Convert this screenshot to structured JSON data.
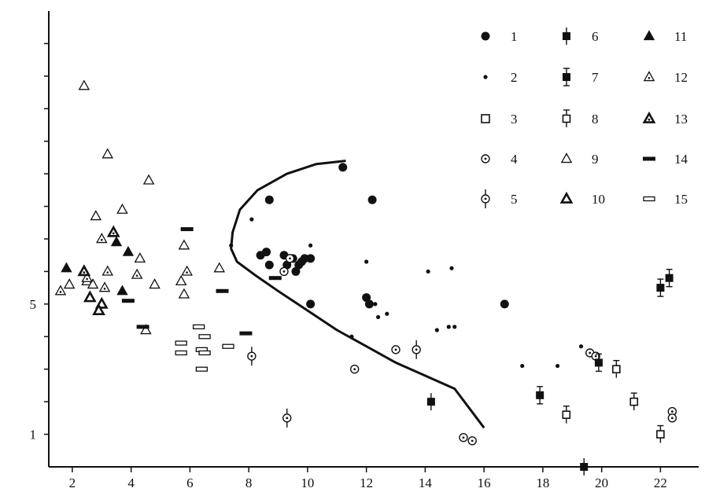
{
  "chart_data": {
    "type": "scatter",
    "xlim": [
      1.2,
      23.3
    ],
    "ylim": [
      0.0,
      14.0
    ],
    "x_ticks": [
      2,
      4,
      6,
      8,
      10,
      12,
      14,
      16,
      18,
      20,
      22
    ],
    "y_ticks_labeled": [
      1,
      5
    ],
    "y_ticks_minor": [
      2,
      3,
      4,
      6,
      7,
      8,
      9,
      10,
      11,
      12,
      13
    ],
    "grid": false,
    "legend_placement": "top-right",
    "legend": [
      {
        "label": "1",
        "marker": "filled-circle-large"
      },
      {
        "label": "2",
        "marker": "filled-dot"
      },
      {
        "label": "3",
        "marker": "open-square"
      },
      {
        "label": "4",
        "marker": "circle-dot"
      },
      {
        "label": "5",
        "marker": "circle-dot-errorbar"
      },
      {
        "label": "6",
        "marker": "filled-square-errorbar"
      },
      {
        "label": "7",
        "marker": "filled-square-capped-errorbar"
      },
      {
        "label": "8",
        "marker": "open-square-capped-errorbar"
      },
      {
        "label": "9",
        "marker": "open-triangle"
      },
      {
        "label": "10",
        "marker": "open-triangle-thick"
      },
      {
        "label": "11",
        "marker": "filled-triangle"
      },
      {
        "label": "12",
        "marker": "triangle-dotted"
      },
      {
        "label": "13",
        "marker": "triangle-dotted-thick"
      },
      {
        "label": "14",
        "marker": "thick-dash"
      },
      {
        "label": "15",
        "marker": "open-rect"
      }
    ],
    "curve": {
      "name": "",
      "points": [
        [
          11.3,
          9.4
        ],
        [
          10.3,
          9.3
        ],
        [
          9.3,
          9.0
        ],
        [
          8.3,
          8.5
        ],
        [
          7.7,
          7.9
        ],
        [
          7.45,
          7.2
        ],
        [
          7.4,
          6.7
        ],
        [
          7.6,
          6.3
        ],
        [
          8.2,
          5.9
        ],
        [
          9.0,
          5.4
        ],
        [
          10.0,
          4.8
        ],
        [
          11.0,
          4.2
        ],
        [
          12.0,
          3.7
        ],
        [
          13.0,
          3.2
        ],
        [
          14.0,
          2.8
        ],
        [
          15.0,
          2.4
        ],
        [
          16.0,
          1.2
        ]
      ]
    },
    "series": [
      {
        "marker": "filled-circle-large",
        "points": [
          [
            11.2,
            9.2
          ],
          [
            8.7,
            8.2
          ],
          [
            12.2,
            8.2
          ],
          [
            8.4,
            6.5
          ],
          [
            8.6,
            6.6
          ],
          [
            8.7,
            6.2
          ],
          [
            9.2,
            6.5
          ],
          [
            9.3,
            6.2
          ],
          [
            9.5,
            6.4
          ],
          [
            9.6,
            6.0
          ],
          [
            9.7,
            6.2
          ],
          [
            9.8,
            6.3
          ],
          [
            9.9,
            6.4
          ],
          [
            10.1,
            6.4
          ],
          [
            12.0,
            5.2
          ],
          [
            12.1,
            5.0
          ],
          [
            10.1,
            5.0
          ],
          [
            16.7,
            5.0
          ]
        ]
      },
      {
        "marker": "filled-dot",
        "points": [
          [
            8.1,
            7.6
          ],
          [
            7.4,
            6.8
          ],
          [
            10.1,
            6.8
          ],
          [
            12.0,
            6.3
          ],
          [
            14.1,
            6.0
          ],
          [
            14.9,
            6.1
          ],
          [
            12.3,
            5.0
          ],
          [
            12.4,
            4.6
          ],
          [
            12.7,
            4.7
          ],
          [
            11.5,
            4.0
          ],
          [
            14.4,
            4.2
          ],
          [
            14.8,
            4.3
          ],
          [
            15.0,
            4.3
          ],
          [
            17.3,
            3.1
          ],
          [
            18.5,
            3.1
          ],
          [
            19.3,
            3.7
          ]
        ]
      },
      {
        "marker": "circle-dot",
        "points": [
          [
            9.2,
            6.0
          ],
          [
            9.4,
            6.4
          ],
          [
            11.6,
            3.0
          ],
          [
            13.0,
            3.6
          ],
          [
            15.3,
            0.9
          ],
          [
            15.6,
            0.8
          ],
          [
            19.6,
            3.5
          ],
          [
            19.8,
            3.4
          ],
          [
            22.4,
            1.7
          ],
          [
            22.4,
            1.5
          ]
        ]
      },
      {
        "marker": "circle-dot-errorbar",
        "points": [
          [
            8.1,
            3.4
          ],
          [
            9.3,
            1.5
          ],
          [
            13.7,
            3.6
          ]
        ]
      },
      {
        "marker": "filled-square-errorbar",
        "points": [
          [
            14.2,
            2.0
          ],
          [
            19.4,
            0.0
          ]
        ]
      },
      {
        "marker": "filled-square-capped-errorbar",
        "points": [
          [
            17.9,
            2.2
          ],
          [
            19.9,
            3.2
          ],
          [
            22.0,
            5.5
          ],
          [
            22.3,
            5.8
          ]
        ]
      },
      {
        "marker": "open-square-capped-errorbar",
        "points": [
          [
            18.8,
            1.6
          ],
          [
            20.5,
            3.0
          ],
          [
            21.1,
            2.0
          ],
          [
            22.0,
            1.0
          ]
        ]
      },
      {
        "marker": "open-triangle",
        "points": [
          [
            2.4,
            11.7
          ],
          [
            3.2,
            9.6
          ],
          [
            4.6,
            8.8
          ],
          [
            3.7,
            7.9
          ],
          [
            2.8,
            7.7
          ],
          [
            5.8,
            6.8
          ],
          [
            4.3,
            6.4
          ],
          [
            7.0,
            6.1
          ],
          [
            5.7,
            5.7
          ],
          [
            5.8,
            5.3
          ],
          [
            4.8,
            5.6
          ],
          [
            4.5,
            4.2
          ],
          [
            1.9,
            5.6
          ],
          [
            2.5,
            5.7
          ],
          [
            2.7,
            5.6
          ]
        ]
      },
      {
        "marker": "open-triangle-thick",
        "points": [
          [
            3.0,
            5.0
          ],
          [
            2.9,
            4.8
          ],
          [
            2.6,
            5.2
          ]
        ]
      },
      {
        "marker": "filled-triangle",
        "points": [
          [
            1.8,
            6.1
          ],
          [
            3.5,
            6.9
          ],
          [
            3.9,
            6.6
          ],
          [
            3.7,
            5.4
          ]
        ]
      },
      {
        "marker": "triangle-dotted",
        "points": [
          [
            3.0,
            7.0
          ],
          [
            3.2,
            6.0
          ],
          [
            4.2,
            5.9
          ],
          [
            2.5,
            5.8
          ],
          [
            3.1,
            5.5
          ],
          [
            1.6,
            5.4
          ],
          [
            5.9,
            6.0
          ]
        ]
      },
      {
        "marker": "triangle-dotted-thick",
        "points": [
          [
            3.4,
            7.2
          ],
          [
            2.4,
            6.0
          ]
        ]
      },
      {
        "marker": "thick-dash",
        "points": [
          [
            5.9,
            7.3
          ],
          [
            7.1,
            5.4
          ],
          [
            3.9,
            5.1
          ],
          [
            8.9,
            5.8
          ],
          [
            4.4,
            4.3
          ],
          [
            7.9,
            4.1
          ]
        ]
      },
      {
        "marker": "open-rect",
        "points": [
          [
            6.3,
            4.3
          ],
          [
            6.5,
            4.0
          ],
          [
            6.4,
            3.6
          ],
          [
            5.7,
            3.8
          ],
          [
            5.7,
            3.5
          ],
          [
            6.5,
            3.5
          ],
          [
            7.3,
            3.7
          ],
          [
            6.4,
            3.0
          ]
        ]
      }
    ]
  }
}
